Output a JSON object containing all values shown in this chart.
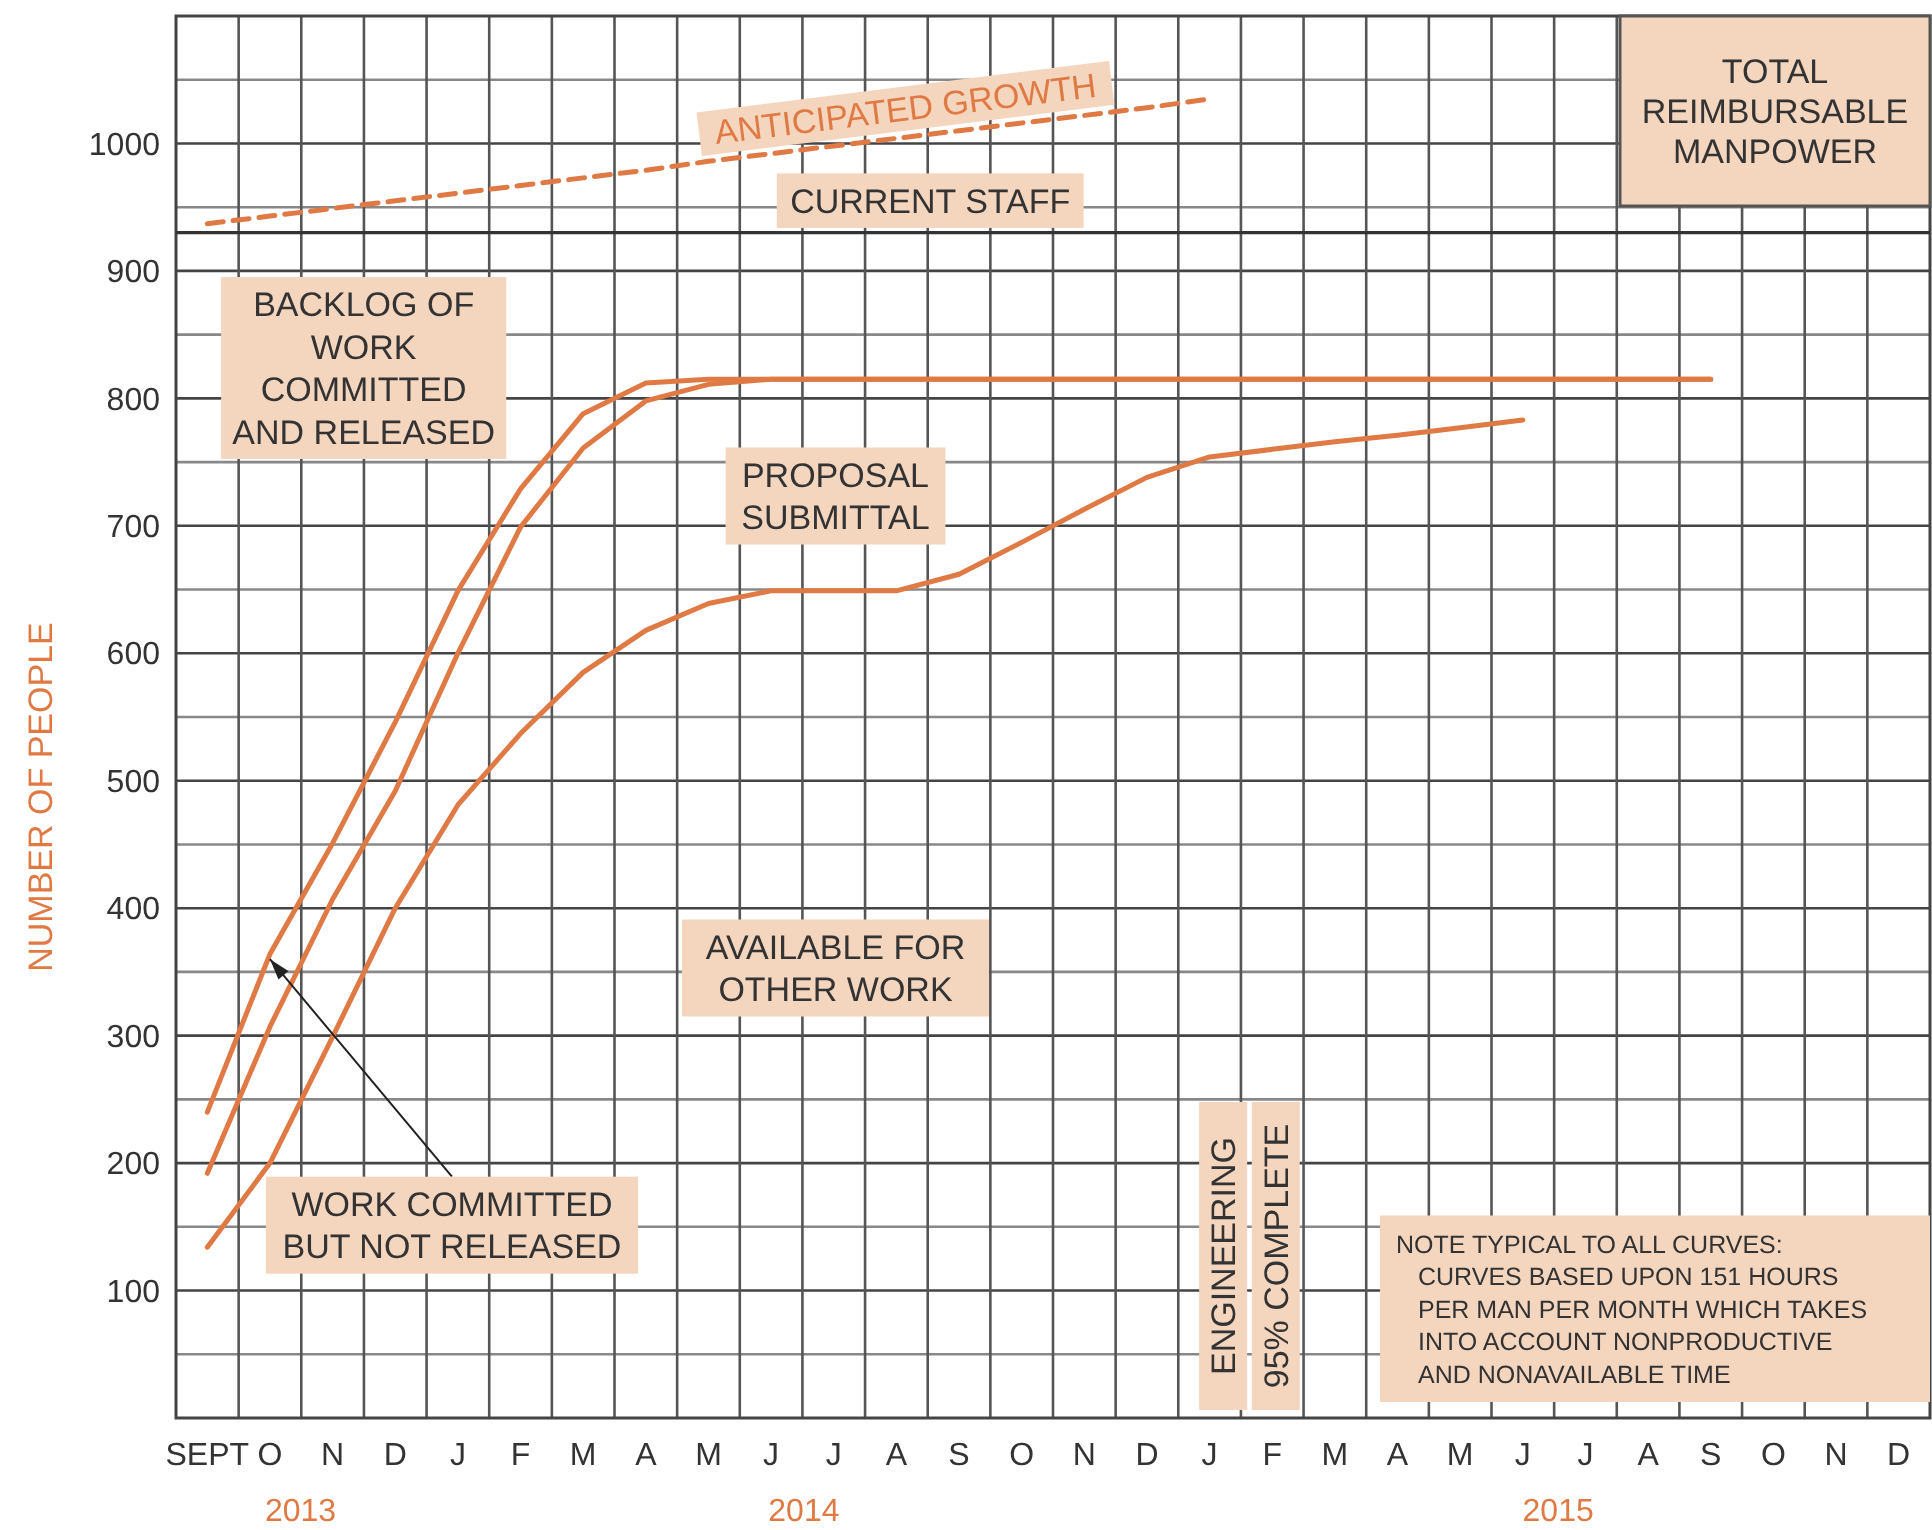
{
  "chart_data": {
    "type": "line",
    "title": "TOTAL\nREIMBURSABLE\nMANPOWER",
    "ylabel": "NUMBER OF PEOPLE",
    "categories": [
      "SEPT",
      "O",
      "N",
      "D",
      "J",
      "F",
      "M",
      "A",
      "M",
      "J",
      "J",
      "A",
      "S",
      "O",
      "N",
      "D",
      "J",
      "F",
      "M",
      "A",
      "M",
      "J",
      "J",
      "A",
      "S",
      "O",
      "N",
      "D"
    ],
    "ylim": [
      0,
      1100
    ],
    "yticks": [
      {
        "value": 50,
        "label": null
      },
      100,
      {
        "value": 150,
        "label": null
      },
      200,
      {
        "value": 250,
        "label": null
      },
      300,
      {
        "value": 350,
        "label": null
      },
      400,
      {
        "value": 450,
        "label": null
      },
      500,
      {
        "value": 550,
        "label": null
      },
      600,
      {
        "value": 650,
        "label": null
      },
      700,
      {
        "value": 750,
        "label": null
      },
      800,
      {
        "value": 850,
        "label": null
      },
      900,
      {
        "value": 950,
        "label": null
      },
      1000,
      {
        "value": 1050,
        "label": null
      }
    ],
    "grid": true,
    "series": [
      {
        "color": "#e07a45",
        "values": [
          240,
          364,
          451,
          546,
          649,
          729,
          788,
          812,
          815,
          815,
          815,
          815,
          815,
          815,
          815,
          815,
          815,
          815,
          815,
          815,
          815,
          815,
          815,
          815,
          815,
          null,
          null,
          null
        ]
      },
      {
        "color": "#e07a45",
        "values": [
          192,
          307,
          407,
          492,
          600,
          699,
          761,
          798,
          811,
          815,
          815,
          815,
          815,
          815,
          815,
          815,
          815,
          815,
          815,
          815,
          815,
          815,
          815,
          815,
          815,
          null,
          null,
          null
        ]
      },
      {
        "color": "#e07a45",
        "values": [
          134,
          200,
          299,
          400,
          481,
          537,
          585,
          618,
          639,
          649,
          649,
          649,
          662,
          687,
          713,
          738,
          754,
          760,
          766,
          771,
          777,
          783,
          null,
          null,
          null,
          null,
          null,
          null
        ]
      },
      {
        "name": "ANTICIPATED GROWTH",
        "color": "#e07a45",
        "line_style": "dashed",
        "values": [
          937,
          943,
          949,
          955,
          961,
          967,
          973,
          979,
          986,
          992,
          998,
          1004,
          1010,
          1016,
          1022,
          1028,
          1035,
          null,
          null,
          null,
          null,
          null,
          null,
          null,
          null,
          null,
          null,
          null
        ]
      }
    ],
    "ref_lines": [
      {
        "axis": "y",
        "value": 930,
        "label": "CURRENT STAFF",
        "color": "#333333"
      }
    ],
    "annotations": [
      "BACKLOG OF\nWORK\nCOMMITTED\nAND RELEASED",
      "PROPOSAL\nSUBMITTAL",
      "AVAILABLE FOR\nOTHER WORK",
      {
        "text": "WORK COMMITTED\nBUT NOT RELEASED",
        "x": "O",
        "y": 360
      },
      "2013",
      "2014",
      "2015",
      "NOTE TYPICAL TO ALL CURVES:\nCURVES BASED UPON 151 HOURS\nPER MAN PER MONTH WHICH TAKES\nINTO ACCOUNT NONPRODUCTIVE\nAND NONAVAILABLE TIME",
      "ENGINEERING",
      "95% COMPLETE"
    ]
  }
}
